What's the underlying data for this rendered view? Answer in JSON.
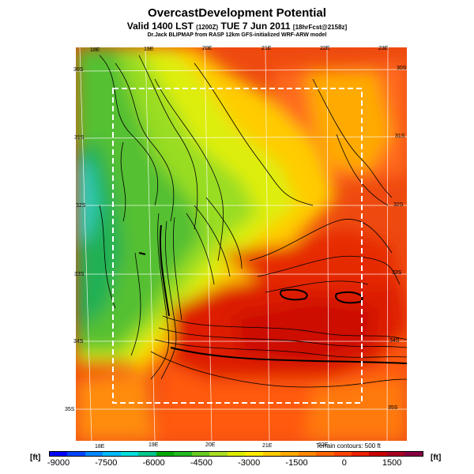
{
  "header": {
    "title": "OvercastDevelopment Potential",
    "valid_line": "Valid 1400 LST",
    "valid_code": "(1200Z)",
    "valid_date": "TUE 7 Jun 2011",
    "fcst_info": "[18hrFcst@2158z]",
    "subtitle": "Dr.Jack BLIPMAP from RASP 12km GFS-initialized WRF-ARW model"
  },
  "axes": {
    "top_lon": [
      "18E",
      "19E",
      "20E",
      "21E",
      "22E",
      "23E"
    ],
    "bottom_lon": [
      "18E",
      "19E",
      "20E",
      "21E",
      "22E"
    ],
    "left_lat": [
      "30S",
      "31S",
      "32S",
      "33S",
      "34S",
      "35S"
    ],
    "right_lat": [
      "30S",
      "31S",
      "32S",
      "33S",
      "34S",
      "35S"
    ]
  },
  "terrain_note": "Terrain contours: 500 ft",
  "colorbar": {
    "unit": "[ft]",
    "ticks": [
      "-9000",
      "-7500",
      "-6000",
      "-4500",
      "-3000",
      "-1500",
      "0",
      "1500"
    ],
    "colors": [
      "#0000ff",
      "#0044ff",
      "#0088ff",
      "#00bbff",
      "#00dddd",
      "#00c88c",
      "#00aa00",
      "#22bb22",
      "#66cc22",
      "#aadd22",
      "#ddee00",
      "#ffee00",
      "#ffcc00",
      "#ffaa00",
      "#ff8800",
      "#ff6600",
      "#ff4400",
      "#ee2200",
      "#cc0000",
      "#aa0022",
      "#880044"
    ]
  }
}
